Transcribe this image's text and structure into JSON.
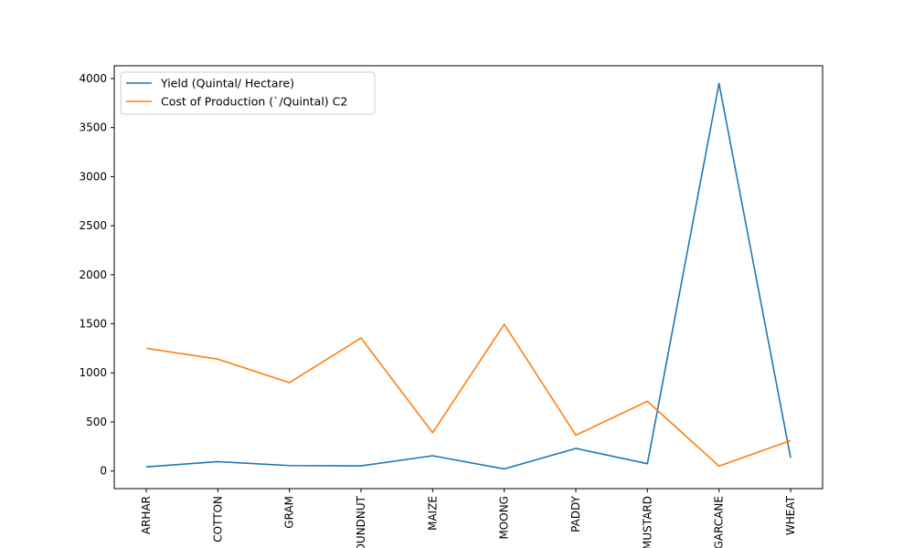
{
  "chart_data": {
    "type": "line",
    "title": "",
    "xlabel": "",
    "ylabel": "",
    "categories": [
      "ARHAR",
      "COTTON",
      "GRAM",
      "GROUNDNUT",
      "MAIZE",
      "MOONG",
      "PADDY",
      "MUSTARD",
      "SUGARCANE",
      "WHEAT"
    ],
    "ylim": [
      -180,
      4130
    ],
    "yticks": [
      0,
      500,
      1000,
      1500,
      2000,
      2500,
      3000,
      3500,
      4000
    ],
    "grid": false,
    "legend_position": "top-left",
    "series": [
      {
        "name": "Yield (Quintal/ Hectare)",
        "color": "#1f77b4",
        "values": [
          42,
          95,
          55,
          52,
          155,
          21,
          230,
          74,
          3950,
          135
        ]
      },
      {
        "name": "Cost of Production (`/Quintal) C2",
        "color": "#ff7f0e",
        "values": [
          1250,
          1140,
          900,
          1355,
          390,
          1495,
          365,
          710,
          50,
          310
        ]
      }
    ]
  }
}
